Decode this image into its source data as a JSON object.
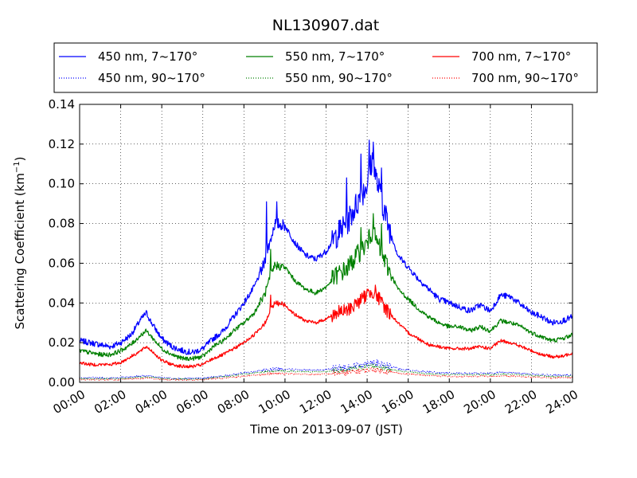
{
  "chart_data": {
    "type": "line",
    "title": "NL130907.dat",
    "xlabel": "Time on 2013-09-07 (JST)",
    "ylabel_main": "Scattering Coefficient (km",
    "ylabel_sup": "−1",
    "ylabel_end": ")",
    "xlim_hours": [
      0,
      24
    ],
    "ylim": [
      0,
      0.14
    ],
    "x_ticks": [
      {
        "hour": 0,
        "label": "00:00"
      },
      {
        "hour": 2,
        "label": "02:00"
      },
      {
        "hour": 4,
        "label": "04:00"
      },
      {
        "hour": 6,
        "label": "06:00"
      },
      {
        "hour": 8,
        "label": "08:00"
      },
      {
        "hour": 10,
        "label": "10:00"
      },
      {
        "hour": 12,
        "label": "12:00"
      },
      {
        "hour": 14,
        "label": "14:00"
      },
      {
        "hour": 16,
        "label": "16:00"
      },
      {
        "hour": 18,
        "label": "18:00"
      },
      {
        "hour": 20,
        "label": "20:00"
      },
      {
        "hour": 22,
        "label": "22:00"
      },
      {
        "hour": 24,
        "label": "24:00"
      }
    ],
    "y_ticks": [
      {
        "value": 0,
        "label": "0.00"
      },
      {
        "value": 0.02,
        "label": "0.02"
      },
      {
        "value": 0.04,
        "label": "0.04"
      },
      {
        "value": 0.06,
        "label": "0.06"
      },
      {
        "value": 0.08,
        "label": "0.08"
      },
      {
        "value": 0.1,
        "label": "0.10"
      },
      {
        "value": 0.12,
        "label": "0.12"
      },
      {
        "value": 0.14,
        "label": "0.14"
      }
    ],
    "grid": true,
    "legend_position": "top",
    "x_hours": [
      0,
      0.5,
      1,
      1.5,
      2,
      2.5,
      3,
      3.25,
      3.5,
      4,
      4.5,
      5,
      5.5,
      6,
      6.5,
      7,
      7.5,
      8,
      8.5,
      9,
      9.5,
      10,
      10.5,
      11,
      11.5,
      12,
      12.5,
      13,
      13.5,
      14,
      14.25,
      14.5,
      15,
      15.5,
      16,
      16.5,
      17,
      17.5,
      18,
      18.5,
      19,
      19.5,
      20,
      20.5,
      21,
      21.5,
      22,
      22.5,
      23,
      23.5,
      24
    ],
    "series": [
      {
        "name": "450 nm, 7~170°",
        "color": "#0000ff",
        "style": "solid",
        "noise": 0.0015,
        "values": [
          0.021,
          0.02,
          0.019,
          0.018,
          0.02,
          0.024,
          0.032,
          0.035,
          0.03,
          0.022,
          0.018,
          0.016,
          0.015,
          0.017,
          0.022,
          0.026,
          0.033,
          0.04,
          0.048,
          0.06,
          0.08,
          0.079,
          0.07,
          0.064,
          0.062,
          0.066,
          0.074,
          0.08,
          0.09,
          0.1,
          0.112,
          0.1,
          0.08,
          0.064,
          0.058,
          0.052,
          0.047,
          0.042,
          0.04,
          0.038,
          0.036,
          0.039,
          0.036,
          0.044,
          0.043,
          0.039,
          0.035,
          0.033,
          0.03,
          0.031,
          0.033
        ],
        "spikes": [
          [
            9.1,
            0.091
          ],
          [
            9.6,
            0.091
          ],
          [
            13.0,
            0.103
          ],
          [
            13.7,
            0.115
          ],
          [
            14.1,
            0.122
          ],
          [
            14.3,
            0.121
          ],
          [
            14.7,
            0.108
          ]
        ]
      },
      {
        "name": "550 nm, 7~170°",
        "color": "#008000",
        "style": "solid",
        "noise": 0.0011,
        "values": [
          0.016,
          0.015,
          0.014,
          0.014,
          0.016,
          0.019,
          0.024,
          0.026,
          0.023,
          0.017,
          0.014,
          0.012,
          0.012,
          0.013,
          0.018,
          0.021,
          0.026,
          0.03,
          0.035,
          0.044,
          0.059,
          0.058,
          0.051,
          0.047,
          0.045,
          0.048,
          0.054,
          0.057,
          0.064,
          0.07,
          0.076,
          0.07,
          0.058,
          0.047,
          0.042,
          0.037,
          0.033,
          0.03,
          0.028,
          0.028,
          0.026,
          0.028,
          0.026,
          0.031,
          0.03,
          0.028,
          0.025,
          0.023,
          0.021,
          0.022,
          0.024
        ],
        "spikes": [
          [
            9.3,
            0.067
          ],
          [
            13.7,
            0.078
          ],
          [
            14.3,
            0.085
          ],
          [
            14.7,
            0.08
          ]
        ]
      },
      {
        "name": "700 nm, 7~170°",
        "color": "#ff0000",
        "style": "solid",
        "noise": 0.0008,
        "values": [
          0.01,
          0.009,
          0.009,
          0.009,
          0.01,
          0.013,
          0.016,
          0.018,
          0.016,
          0.011,
          0.009,
          0.008,
          0.008,
          0.009,
          0.012,
          0.014,
          0.017,
          0.02,
          0.024,
          0.03,
          0.04,
          0.039,
          0.034,
          0.031,
          0.03,
          0.032,
          0.035,
          0.036,
          0.04,
          0.044,
          0.046,
          0.043,
          0.036,
          0.03,
          0.025,
          0.022,
          0.019,
          0.018,
          0.017,
          0.017,
          0.017,
          0.018,
          0.017,
          0.021,
          0.02,
          0.018,
          0.016,
          0.014,
          0.013,
          0.013,
          0.015
        ],
        "spikes": [
          [
            9.3,
            0.044
          ],
          [
            14.0,
            0.047
          ],
          [
            14.4,
            0.049
          ]
        ]
      },
      {
        "name": "450 nm, 90~170°",
        "color": "#0000ff",
        "style": "dotted",
        "noise": 0.0004,
        "values": [
          0.0025,
          0.0024,
          0.0022,
          0.0022,
          0.0024,
          0.0028,
          0.0032,
          0.0034,
          0.0031,
          0.0025,
          0.0021,
          0.0019,
          0.0019,
          0.0021,
          0.0028,
          0.0033,
          0.004,
          0.0048,
          0.0055,
          0.0062,
          0.0068,
          0.0068,
          0.0064,
          0.0062,
          0.0062,
          0.0065,
          0.007,
          0.0075,
          0.0085,
          0.0095,
          0.0105,
          0.0095,
          0.0082,
          0.007,
          0.0063,
          0.0057,
          0.0052,
          0.0049,
          0.0047,
          0.0046,
          0.0045,
          0.0047,
          0.0046,
          0.005,
          0.0049,
          0.0046,
          0.0042,
          0.0039,
          0.0036,
          0.0036,
          0.0038
        ],
        "spikes": []
      },
      {
        "name": "550 nm, 90~170°",
        "color": "#008000",
        "style": "dotted",
        "noise": 0.0003,
        "values": [
          0.002,
          0.0019,
          0.0018,
          0.0018,
          0.0019,
          0.0023,
          0.0027,
          0.0029,
          0.0026,
          0.0021,
          0.0017,
          0.0016,
          0.0016,
          0.0018,
          0.0024,
          0.0028,
          0.0034,
          0.0041,
          0.0047,
          0.0053,
          0.0058,
          0.0058,
          0.0055,
          0.0053,
          0.0053,
          0.0055,
          0.0059,
          0.0063,
          0.0071,
          0.0079,
          0.0086,
          0.0079,
          0.0068,
          0.0059,
          0.0053,
          0.0048,
          0.0044,
          0.0041,
          0.004,
          0.0039,
          0.0038,
          0.004,
          0.0039,
          0.0042,
          0.0041,
          0.0039,
          0.0035,
          0.0033,
          0.003,
          0.003,
          0.0032
        ],
        "spikes": []
      },
      {
        "name": "700 nm, 90~170°",
        "color": "#ff0000",
        "style": "dotted",
        "noise": 0.0003,
        "values": [
          0.0015,
          0.0014,
          0.0013,
          0.0013,
          0.0014,
          0.0017,
          0.002,
          0.0022,
          0.002,
          0.0016,
          0.0013,
          0.0012,
          0.0012,
          0.0014,
          0.0018,
          0.0021,
          0.0026,
          0.0031,
          0.0036,
          0.0041,
          0.0045,
          0.0045,
          0.0043,
          0.0041,
          0.0041,
          0.0043,
          0.0046,
          0.0049,
          0.0055,
          0.0061,
          0.0066,
          0.0061,
          0.0053,
          0.0046,
          0.0041,
          0.0037,
          0.0034,
          0.0032,
          0.0031,
          0.003,
          0.0029,
          0.0031,
          0.003,
          0.0032,
          0.0031,
          0.003,
          0.0027,
          0.0025,
          0.0023,
          0.0023,
          0.0025
        ],
        "spikes": []
      }
    ]
  }
}
